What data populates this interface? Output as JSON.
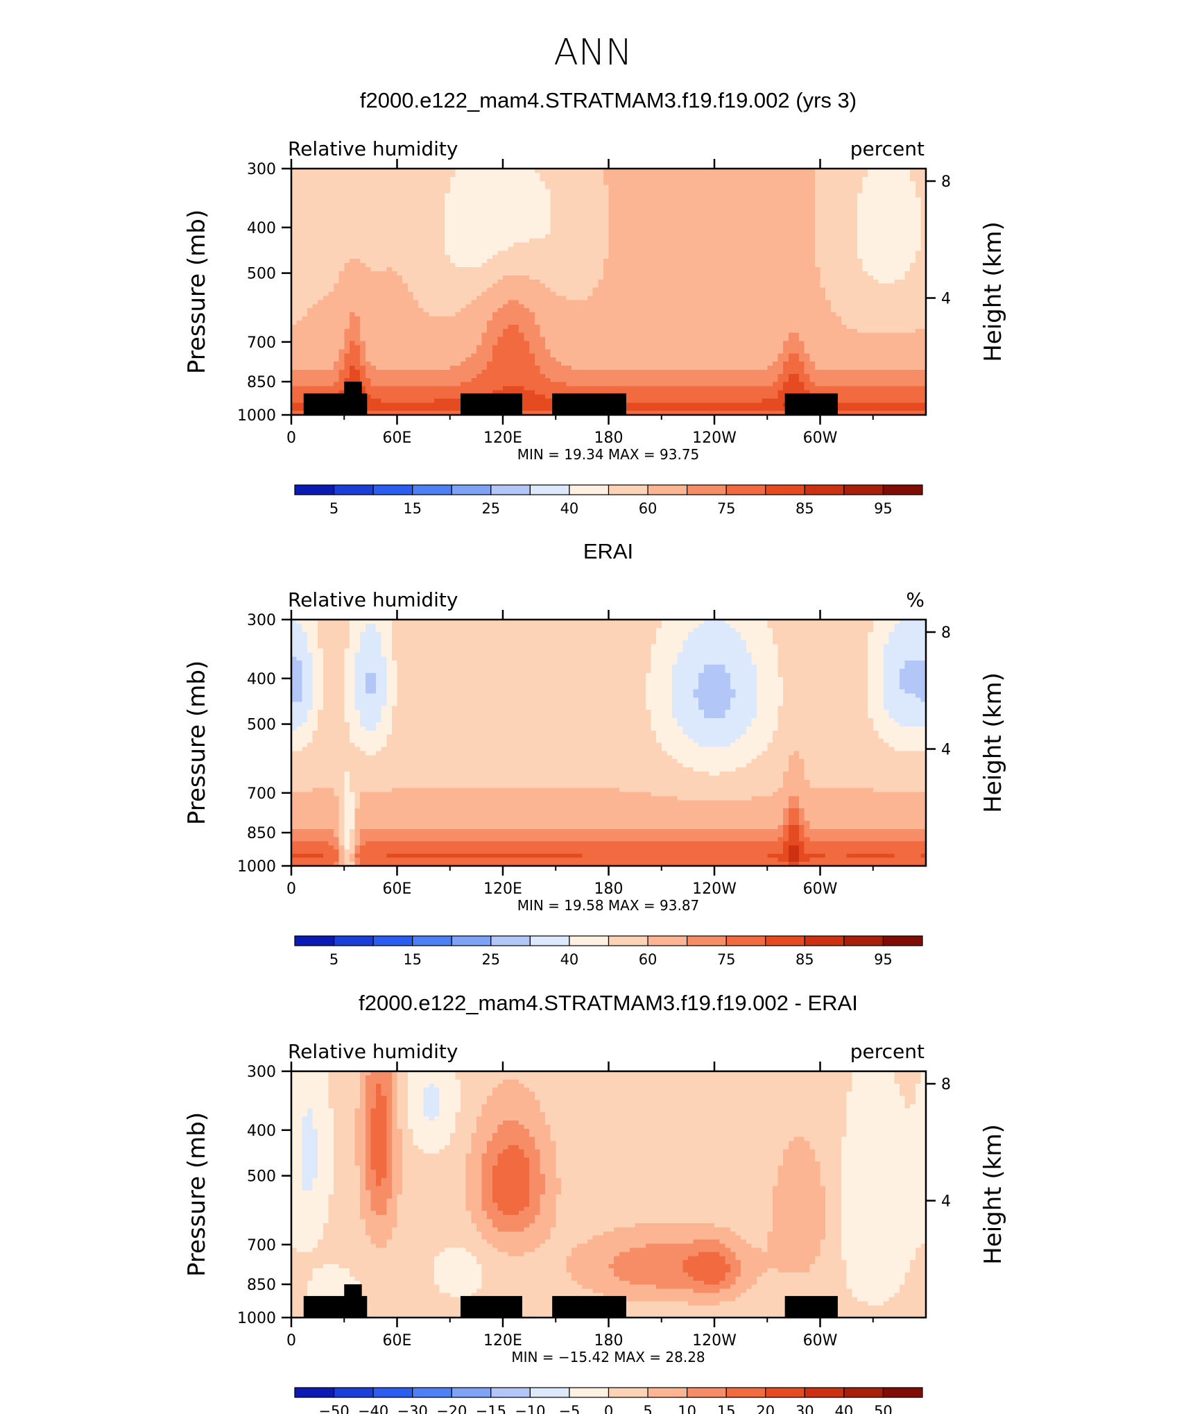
{
  "figure": {
    "suptitle": "ANN",
    "colormap": [
      "#08006e",
      "#0a1ab3",
      "#1a3fd9",
      "#2b5ef0",
      "#4d7ff5",
      "#7ea2f5",
      "#b2c6f7",
      "#dce8fb",
      "#fff1e1",
      "#fdd3b7",
      "#fbb592",
      "#f78d66",
      "#f26a40",
      "#e54a20",
      "#cc3212",
      "#a8200a",
      "#800c05"
    ],
    "panels": [
      {
        "title": "f2000.e122_mam4.STRATMAM3.f19.f19.002 (yrs 3)",
        "left_string": "Relative humidity",
        "right_string": "percent",
        "stats": "MIN =  19.34  MAX =  93.75",
        "colorbar_labels": [
          "5",
          "15",
          "25",
          "40",
          "60",
          "75",
          "85",
          "95"
        ]
      },
      {
        "title": "ERAI",
        "left_string": "Relative humidity",
        "right_string": "%",
        "stats": "MIN =  19.58  MAX =  93.87",
        "colorbar_labels": [
          "5",
          "15",
          "25",
          "40",
          "60",
          "75",
          "85",
          "95"
        ]
      },
      {
        "title": "f2000.e122_mam4.STRATMAM3.f19.f19.002 - ERAI",
        "left_string": "Relative humidity",
        "right_string": "percent",
        "stats": "MIN = −15.42  MAX =  28.28",
        "colorbar_labels": [
          "−50",
          "−40",
          "−30",
          "−20",
          "−15",
          "−10",
          "−5",
          "0",
          "5",
          "10",
          "15",
          "20",
          "30",
          "40",
          "50"
        ]
      }
    ]
  },
  "chart_data": [
    {
      "type": "heatmap",
      "title": "f2000.e122_mam4.STRATMAM3.f19.f19.002 (yrs 3)",
      "variable": "Relative humidity",
      "units": "percent",
      "x_ticks": [
        "0",
        "60E",
        "120E",
        "180",
        "120W",
        "60W"
      ],
      "x_range_deg_east": [
        0,
        360
      ],
      "y_label_left": "Pressure (mb)",
      "y_ticks_left": [
        "300",
        "400",
        "500",
        "700",
        "850",
        "1000"
      ],
      "y_label_right": "Height (km)",
      "y_ticks_right": [
        "8",
        "4"
      ],
      "levels": [
        5,
        10,
        15,
        20,
        25,
        30,
        40,
        50,
        60,
        70,
        75,
        80,
        85,
        90,
        95
      ],
      "min": 19.34,
      "max": 93.75,
      "topography": true,
      "field": {
        "base": 62,
        "surface": 24,
        "lowdry": -10,
        "blobs": [
          {
            "lon": 120,
            "p": 400,
            "sl": 26,
            "sp": 130,
            "a": -30
          },
          {
            "lon": 338,
            "p": 400,
            "sl": 20,
            "sp": 140,
            "a": -18
          },
          {
            "lon": 30,
            "p": 380,
            "sl": 15,
            "sp": 90,
            "a": -8
          },
          {
            "lon": 125,
            "p": 560,
            "sl": 16,
            "sp": 190,
            "a": 20
          },
          {
            "lon": 35,
            "p": 740,
            "sl": 5,
            "sp": 170,
            "a": 12
          },
          {
            "lon": 285,
            "p": 780,
            "sl": 6,
            "sp": 150,
            "a": 10
          }
        ]
      }
    },
    {
      "type": "heatmap",
      "title": "ERAI",
      "variable": "Relative humidity",
      "units": "%",
      "x_ticks": [
        "0",
        "60E",
        "120E",
        "180",
        "120W",
        "60W"
      ],
      "x_range_deg_east": [
        0,
        360
      ],
      "y_label_left": "Pressure (mb)",
      "y_ticks_left": [
        "300",
        "400",
        "500",
        "700",
        "850",
        "1000"
      ],
      "y_label_right": "Height (km)",
      "y_ticks_right": [
        "8",
        "4"
      ],
      "levels": [
        5,
        10,
        15,
        20,
        25,
        30,
        40,
        50,
        60,
        70,
        75,
        80,
        85,
        90,
        95
      ],
      "min": 19.58,
      "max": 93.87,
      "topography": false,
      "field": {
        "base": 59,
        "surface": 26,
        "lowdry": -10,
        "blobs": [
          {
            "lon": 240,
            "p": 430,
            "sl": 24,
            "sp": 130,
            "a": -32
          },
          {
            "lon": 45,
            "p": 410,
            "sl": 9,
            "sp": 110,
            "a": -30
          },
          {
            "lon": 345,
            "p": 400,
            "sl": 14,
            "sp": 110,
            "a": -22
          },
          {
            "lon": 360,
            "p": 400,
            "sl": 14,
            "sp": 110,
            "a": -12
          },
          {
            "lon": 6,
            "p": 420,
            "sl": 6,
            "sp": 90,
            "a": -12
          },
          {
            "lon": 32,
            "p": 880,
            "sl": 3,
            "sp": 150,
            "a": -30
          },
          {
            "lon": 285,
            "p": 800,
            "sl": 4,
            "sp": 160,
            "a": 12
          }
        ]
      }
    },
    {
      "type": "heatmap",
      "title": "f2000.e122_mam4.STRATMAM3.f19.f19.002 - ERAI",
      "variable": "Relative humidity",
      "units": "percent",
      "x_ticks": [
        "0",
        "60E",
        "120E",
        "180",
        "120W",
        "60W"
      ],
      "x_range_deg_east": [
        0,
        360
      ],
      "y_label_left": "Pressure (mb)",
      "y_ticks_left": [
        "300",
        "400",
        "500",
        "700",
        "850",
        "1000"
      ],
      "y_label_right": "Height (km)",
      "y_ticks_right": [
        "8",
        "4"
      ],
      "levels": [
        -50,
        -40,
        -30,
        -20,
        -15,
        -10,
        -5,
        0,
        5,
        10,
        15,
        20,
        30,
        40,
        50
      ],
      "min": -15.42,
      "max": 28.28,
      "topography": true,
      "field": {
        "base": 2,
        "surface": 0,
        "lowdry": 0,
        "blobs": [
          {
            "lon": 125,
            "p": 520,
            "sl": 14,
            "sp": 110,
            "a": 18
          },
          {
            "lon": 50,
            "p": 420,
            "sl": 7,
            "sp": 160,
            "a": 16
          },
          {
            "lon": 210,
            "p": 780,
            "sl": 32,
            "sp": 90,
            "a": 12
          },
          {
            "lon": 240,
            "p": 790,
            "sl": 10,
            "sp": 70,
            "a": 10
          },
          {
            "lon": 290,
            "p": 600,
            "sl": 12,
            "sp": 140,
            "a": 8
          },
          {
            "lon": 10,
            "p": 450,
            "sl": 8,
            "sp": 150,
            "a": -8
          },
          {
            "lon": 330,
            "p": 600,
            "sl": 18,
            "sp": 250,
            "a": -5
          },
          {
            "lon": 80,
            "p": 350,
            "sl": 10,
            "sp": 60,
            "a": -8
          },
          {
            "lon": 95,
            "p": 800,
            "sl": 10,
            "sp": 70,
            "a": -6
          },
          {
            "lon": 25,
            "p": 900,
            "sl": 10,
            "sp": 80,
            "a": -6
          }
        ]
      }
    }
  ]
}
